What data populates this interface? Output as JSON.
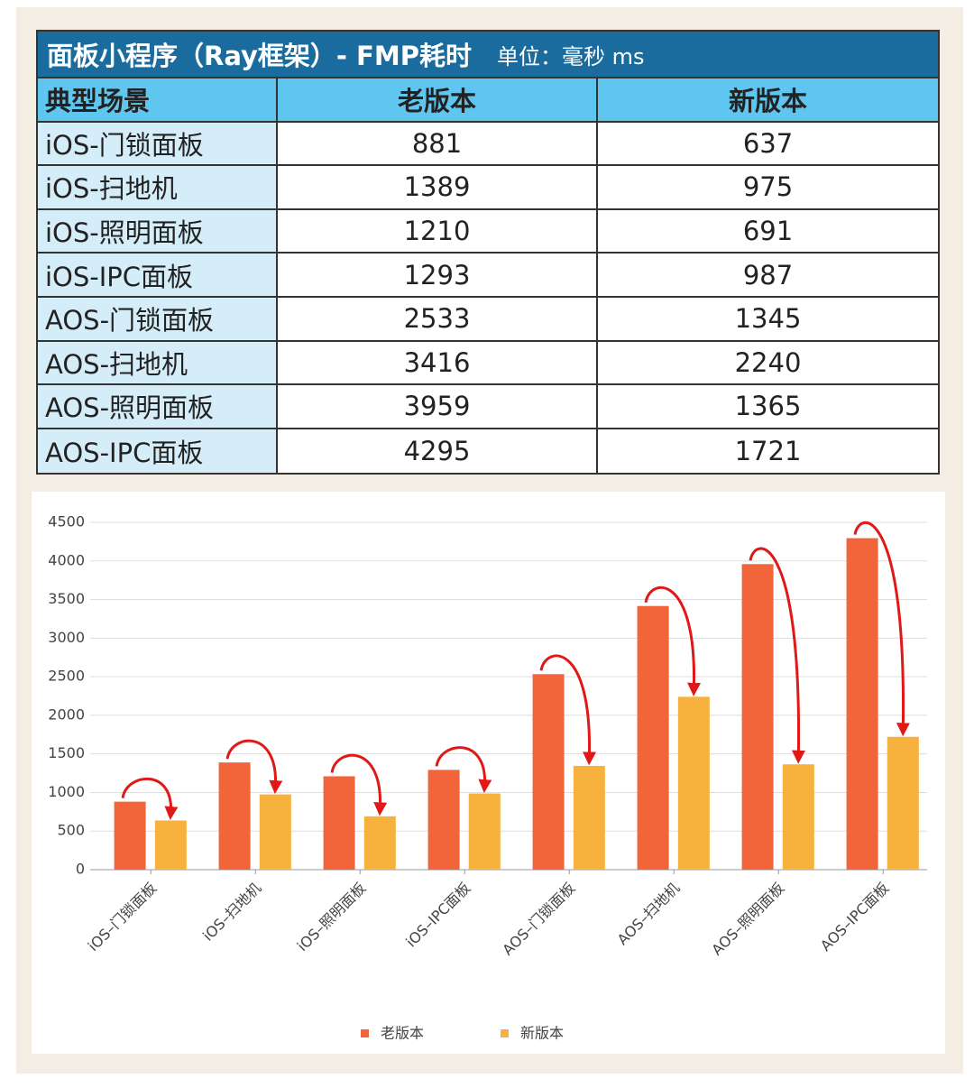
{
  "table": {
    "title": "面板小程序（Ray框架）- FMP耗时",
    "unit": "单位：毫秒 ms",
    "header": [
      "典型场景",
      "老版本",
      "新版本"
    ],
    "rows": [
      [
        "iOS-门锁面板",
        881,
        637
      ],
      [
        "iOS-扫地机",
        1389,
        975
      ],
      [
        "iOS-照明面板",
        1210,
        691
      ],
      [
        "iOS-IPC面板",
        1293,
        987
      ],
      [
        "AOS-门锁面板",
        2533,
        1345
      ],
      [
        "AOS-扫地机",
        3416,
        2240
      ],
      [
        "AOS-照明面板",
        3959,
        1365
      ],
      [
        "AOS-IPC面板",
        4295,
        1721
      ]
    ]
  },
  "chart_data": {
    "type": "bar",
    "categories": [
      "iOS–门锁面板",
      "iOS–扫地机",
      "iOS–照明面板",
      "iOS–IPC面板",
      "AOS–门锁面板",
      "AOS–扫地机",
      "AOS–照明面板",
      "AOS–IPC面板"
    ],
    "series": [
      {
        "name": "老版本",
        "color": "#f2643a",
        "values": [
          881,
          1389,
          1210,
          1293,
          2533,
          3416,
          3959,
          4295
        ]
      },
      {
        "name": "新版本",
        "color": "#f7b13d",
        "values": [
          637,
          975,
          691,
          987,
          1345,
          2240,
          1365,
          1721
        ]
      }
    ],
    "ylim": [
      0,
      4500
    ],
    "yticks": [
      0,
      500,
      1000,
      1500,
      2000,
      2500,
      3000,
      3500,
      4000,
      4500
    ],
    "grid": true,
    "legend": "bottom"
  }
}
